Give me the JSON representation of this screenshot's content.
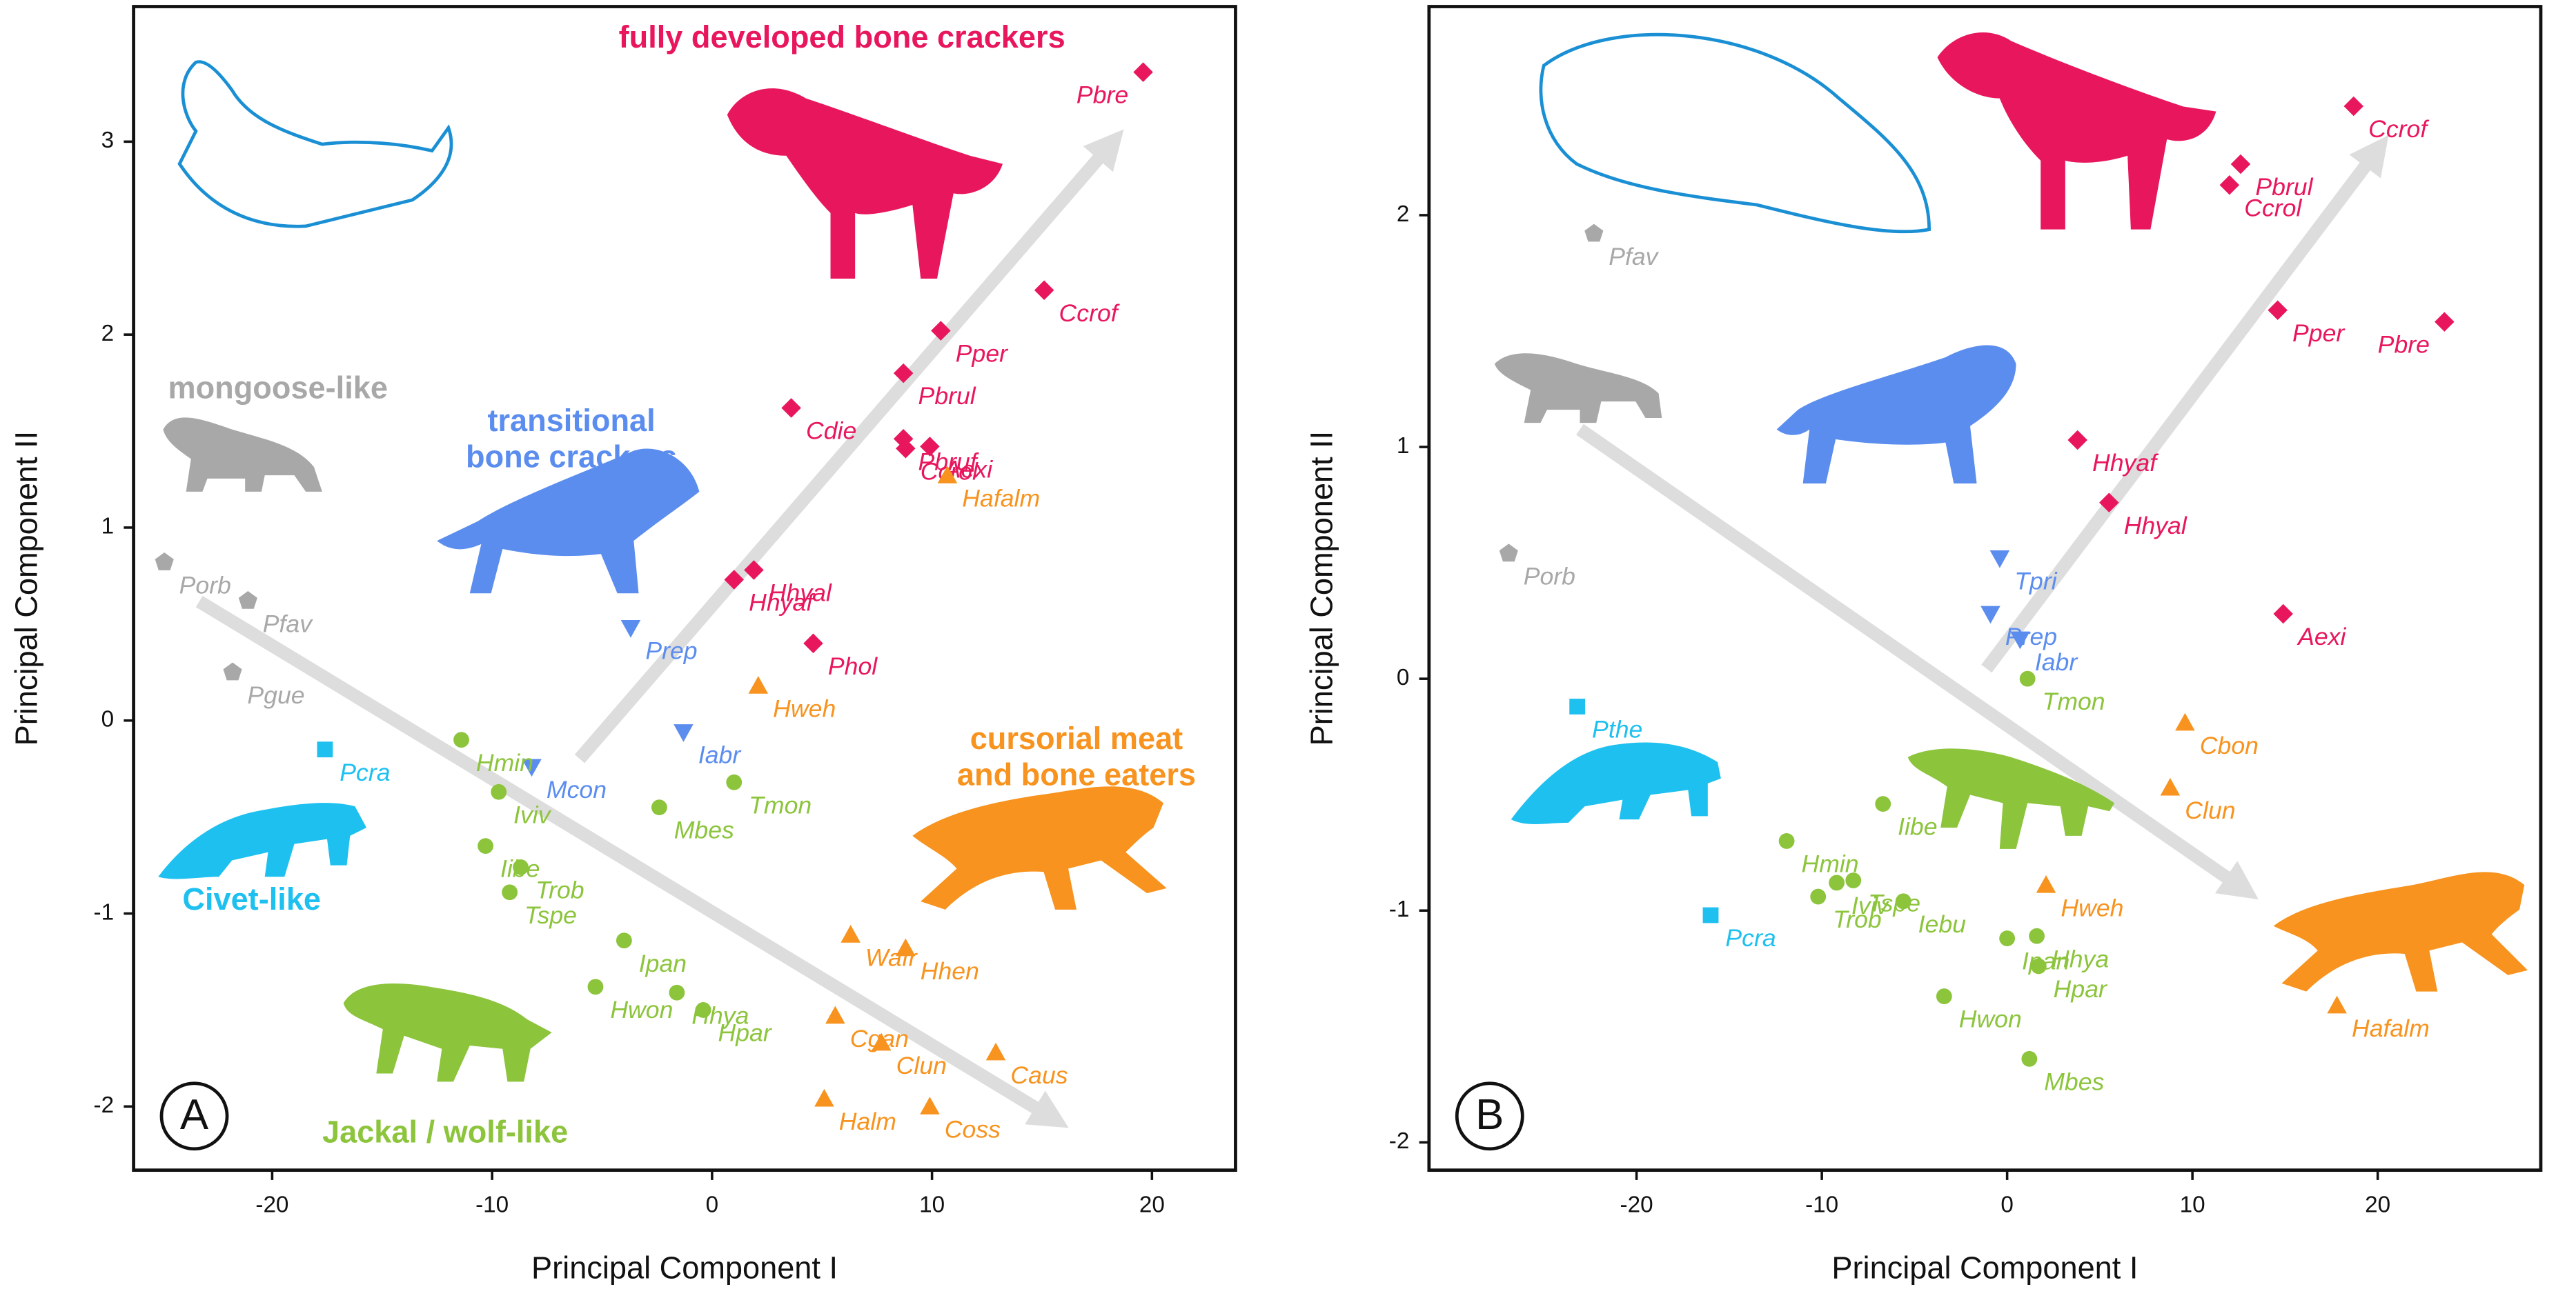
{
  "chart_data": [
    {
      "type": "scatter",
      "panel_label": "A",
      "x_label": "Principal Component I",
      "y_label": "Principal Component II",
      "xlim": [
        -26.3,
        23.8
      ],
      "ylim": [
        -2.33,
        3.7
      ],
      "xticks": [
        -20,
        -10,
        0,
        10,
        20
      ],
      "yticks": [
        -2,
        -1,
        0,
        1,
        2,
        3
      ],
      "grid": false,
      "annotations": [
        {
          "text": [
            "fully developed bone crackers"
          ],
          "color": "#e8175d"
        },
        {
          "text": [
            "transitional",
            "bone crackers"
          ],
          "color": "#5b8def"
        },
        {
          "text": [
            "mongoose-like"
          ],
          "color": "#a8a8a8"
        },
        {
          "text": [
            "Civet-like"
          ],
          "color": "#1ec0f0"
        },
        {
          "text": [
            "Jackal / wolf-like"
          ],
          "color": "#8cc43c"
        },
        {
          "text": [
            "cursorial meat",
            "and bone eaters"
          ],
          "color": "#f7931e"
        }
      ],
      "series": [
        {
          "color": "#e8175d",
          "marker": "diamond",
          "labels": [
            "Pbre",
            "Ccrof",
            "Pper",
            "Pbrul",
            "Cdie",
            "Pbruf",
            "Ccrol",
            "Aexi",
            "Hhyal",
            "Hhyaf",
            "Phol"
          ],
          "x": [
            19.6,
            15.1,
            10.4,
            8.7,
            3.6,
            8.7,
            8.8,
            9.9,
            1.9,
            1.0,
            4.6
          ],
          "values": [
            3.36,
            2.23,
            2.02,
            1.8,
            1.62,
            1.46,
            1.41,
            1.42,
            0.78,
            0.73,
            0.4
          ]
        },
        {
          "color": "#5b8def",
          "marker": "triangle-down",
          "labels": [
            "Prep",
            "Iabr",
            "Mcon"
          ],
          "x": [
            -3.7,
            -1.3,
            -8.2
          ],
          "values": [
            0.48,
            -0.06,
            -0.24
          ]
        },
        {
          "color": "#a8a8a8",
          "marker": "pentagon",
          "labels": [
            "Porb",
            "Pfav",
            "Pgue"
          ],
          "x": [
            -24.9,
            -21.1,
            -21.8
          ],
          "values": [
            0.82,
            0.62,
            0.25
          ]
        },
        {
          "color": "#1ec0f0",
          "marker": "square",
          "labels": [
            "Pcra"
          ],
          "x": [
            -17.6
          ],
          "values": [
            -0.15
          ]
        },
        {
          "color": "#8cc43c",
          "marker": "circle",
          "labels": [
            "Hmin",
            "Iviv",
            "Iibe",
            "Trob",
            "Tspe",
            "Mbes",
            "Tmon",
            "Ipan",
            "Hhya",
            "Hpar",
            "Hwon"
          ],
          "x": [
            -11.4,
            -9.7,
            -10.3,
            -8.7,
            -9.2,
            -2.4,
            1.0,
            -4.0,
            -1.6,
            -0.4,
            -5.3
          ],
          "values": [
            -0.1,
            -0.37,
            -0.65,
            -0.76,
            -0.89,
            -0.45,
            -0.32,
            -1.14,
            -1.41,
            -1.5,
            -1.38
          ]
        },
        {
          "color": "#f7931e",
          "marker": "triangle",
          "labels": [
            "Hafalm",
            "Hweh",
            "Wafr",
            "Hhen",
            "Cgan",
            "Clun",
            "Caus",
            "Halm",
            "Coss"
          ],
          "x": [
            10.7,
            2.1,
            6.3,
            8.8,
            5.6,
            7.7,
            12.9,
            5.1,
            9.9
          ],
          "values": [
            1.27,
            0.18,
            -1.11,
            -1.18,
            -1.53,
            -1.67,
            -1.72,
            -1.96,
            -2.0
          ]
        }
      ]
    },
    {
      "type": "scatter",
      "panel_label": "B",
      "x_label": "Principal Component I",
      "y_label": "Principal Component II",
      "xlim": [
        -31.2,
        28.8
      ],
      "ylim": [
        -2.12,
        2.9
      ],
      "xticks": [
        -20,
        -10,
        0,
        10,
        20
      ],
      "yticks": [
        -2,
        -1,
        0,
        1,
        2
      ],
      "grid": false,
      "series": [
        {
          "color": "#e8175d",
          "marker": "diamond",
          "labels": [
            "Ccrof",
            "Pbrul",
            "Ccrol",
            "Pper",
            "Pbre",
            "Hhyaf",
            "Hhyal",
            "Aexi"
          ],
          "x": [
            18.7,
            12.6,
            12.0,
            14.6,
            23.6,
            3.8,
            5.5,
            14.9
          ],
          "values": [
            2.47,
            2.22,
            2.13,
            1.59,
            1.54,
            1.03,
            0.76,
            0.28
          ]
        },
        {
          "color": "#5b8def",
          "marker": "triangle-down",
          "labels": [
            "Tpri",
            "Prep",
            "Iabr"
          ],
          "x": [
            -0.4,
            -0.9,
            0.7
          ],
          "values": [
            0.52,
            0.28,
            0.17
          ]
        },
        {
          "color": "#a8a8a8",
          "marker": "pentagon",
          "labels": [
            "Pfav",
            "Porb"
          ],
          "x": [
            -22.3,
            -26.9
          ],
          "values": [
            1.92,
            0.54
          ]
        },
        {
          "color": "#1ec0f0",
          "marker": "square",
          "labels": [
            "Pthe",
            "Pcra"
          ],
          "x": [
            -23.2,
            -16.0
          ],
          "values": [
            -0.12,
            -1.02
          ]
        },
        {
          "color": "#8cc43c",
          "marker": "circle",
          "labels": [
            "Tmon",
            "Iibe",
            "Hmin",
            "Iviv",
            "Tspe",
            "Trob",
            "Iebu",
            "Ipan",
            "Hhya",
            "Hpar",
            "Hwon",
            "Mbes"
          ],
          "x": [
            1.1,
            -6.7,
            -11.9,
            -9.2,
            -8.3,
            -10.2,
            -5.6,
            0.0,
            1.6,
            1.7,
            -3.4,
            1.2
          ],
          "values": [
            0.0,
            -0.54,
            -0.7,
            -0.88,
            -0.87,
            -0.94,
            -0.96,
            -1.12,
            -1.11,
            -1.24,
            -1.37,
            -1.64
          ]
        },
        {
          "color": "#f7931e",
          "marker": "triangle",
          "labels": [
            "Cbon",
            "Clun",
            "Hweh",
            "Hafalm"
          ],
          "x": [
            9.6,
            8.8,
            2.1,
            17.8
          ],
          "values": [
            -0.19,
            -0.47,
            -0.89,
            -1.41
          ]
        }
      ]
    }
  ]
}
